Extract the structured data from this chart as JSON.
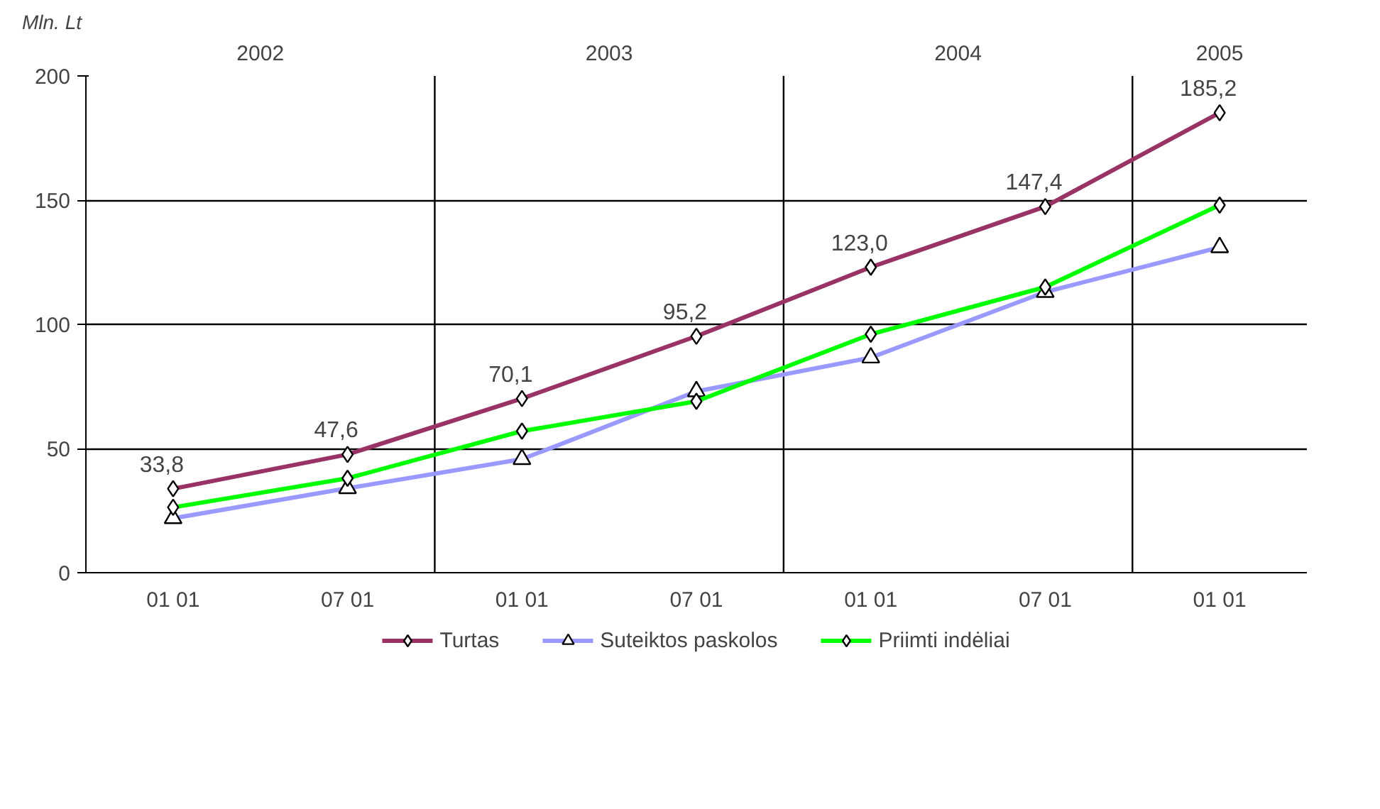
{
  "chart_data": {
    "type": "line",
    "ylabel": "Mln. Lt",
    "categories": [
      "01 01",
      "07 01",
      "01 01",
      "07 01",
      "01 01",
      "07 01",
      "01 01"
    ],
    "annotations": [
      "2002",
      "2003",
      "2004",
      "2005"
    ],
    "ylim": [
      0,
      200
    ],
    "yticks": [
      0,
      50,
      100,
      150,
      200
    ],
    "grid": "y",
    "legend": "bottom",
    "line_style": "solid",
    "series": [
      {
        "name": "Turtas",
        "color": "#993366",
        "marker": "diamond",
        "values": [
          33.8,
          47.6,
          70.1,
          95.2,
          123.0,
          147.4,
          185.2
        ],
        "value_labels": [
          "33,8",
          "47,6",
          "70,1",
          "95,2",
          "123,0",
          "147,4",
          "185,2"
        ]
      },
      {
        "name": "Suteiktos paskolos",
        "color": "#9999ff",
        "marker": "triangle",
        "values": [
          21.9,
          34,
          45.7,
          73,
          86.6,
          113,
          131
        ]
      },
      {
        "name": "Priimti indėliai",
        "color": "#00ff00",
        "marker": "diamond",
        "values": [
          26.3,
          38,
          57,
          69,
          96,
          115,
          148
        ]
      }
    ]
  }
}
